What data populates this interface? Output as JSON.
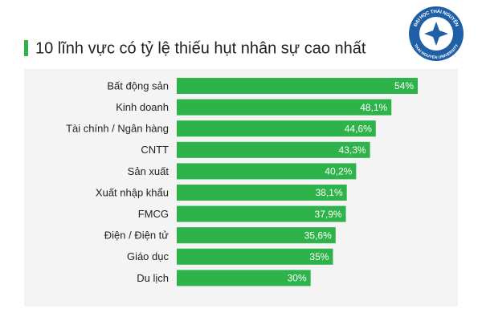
{
  "chart_data": {
    "type": "barh",
    "title": "10 lĩnh vực có tỷ lệ thiếu hụt nhân sự cao nhất",
    "categories": [
      "Bất động sản",
      "Kinh doanh",
      "Tài chính / Ngân hàng",
      "CNTT",
      "Sản xuất",
      "Xuất nhập khẩu",
      "FMCG",
      "Điện / Điện tử",
      "Giáo dục",
      "Du lịch"
    ],
    "values": [
      54,
      48.1,
      44.6,
      43.3,
      40.2,
      38.1,
      37.9,
      35.6,
      35,
      30
    ],
    "value_labels": [
      "54%",
      "48,1%",
      "44,6%",
      "43,3%",
      "40,2%",
      "38,1%",
      "37,9%",
      "35,6%",
      "35%",
      "30%"
    ],
    "color": "#2eb24a"
  },
  "logo": {
    "top": "ĐẠI HỌC THÁI NGUYÊN",
    "bottom": "THAI NGUYEN UNIVERSITY"
  }
}
